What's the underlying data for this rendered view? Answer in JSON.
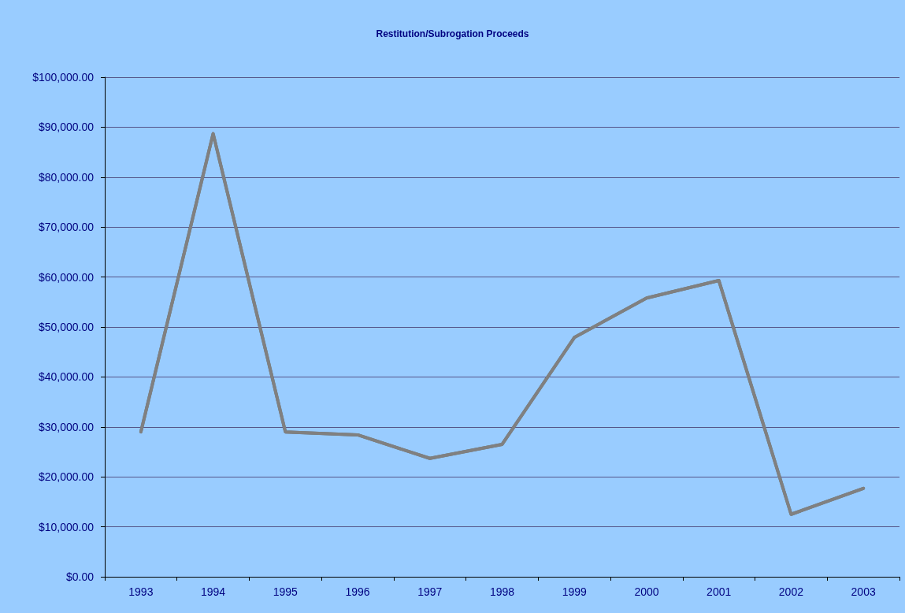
{
  "chart_data": {
    "type": "line",
    "title": "Restitution/Subrogation Proceeds",
    "categories": [
      "1993",
      "1994",
      "1995",
      "1996",
      "1997",
      "1998",
      "1999",
      "2000",
      "2001",
      "2002",
      "2003"
    ],
    "series": [
      {
        "color": "#808080",
        "values": [
          29000,
          88700,
          29000,
          28400,
          23700,
          26500,
          47900,
          55800,
          59300,
          12500,
          17700
        ]
      }
    ],
    "ylim": [
      0,
      100000
    ],
    "yticks": [
      {
        "value": 0,
        "label": "$0.00"
      },
      {
        "value": 10000,
        "label": "$10,000.00"
      },
      {
        "value": 20000,
        "label": "$20,000.00"
      },
      {
        "value": 30000,
        "label": "$30,000.00"
      },
      {
        "value": 40000,
        "label": "$40,000.00"
      },
      {
        "value": 50000,
        "label": "$50,000.00"
      },
      {
        "value": 60000,
        "label": "$60,000.00"
      },
      {
        "value": 70000,
        "label": "$70,000.00"
      },
      {
        "value": 80000,
        "label": "$80,000.00"
      },
      {
        "value": 90000,
        "label": "$90,000.00"
      },
      {
        "value": 100000,
        "label": "$100,000.00"
      }
    ],
    "grid": "y",
    "marker": "none",
    "line_style": "solid"
  }
}
